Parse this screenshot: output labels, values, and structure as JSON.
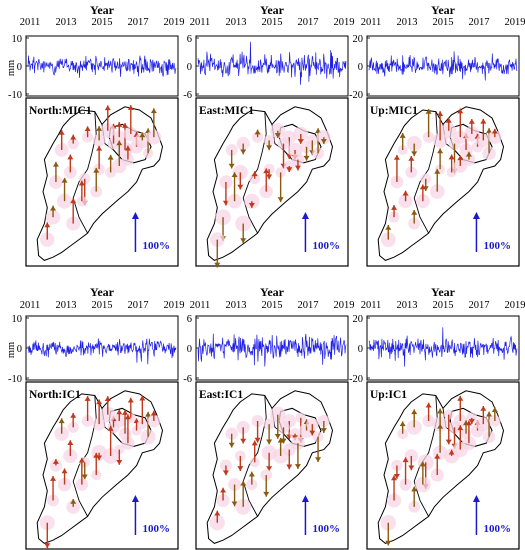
{
  "colors": {
    "series": "#1f1fe6",
    "arrow": "#c0391b",
    "arrow_dark": "#8b5a10",
    "halo": "#f7d6e6",
    "scale_arrow": "#1a1acc",
    "outline": "#000000"
  },
  "chart_data": [
    {
      "type": "line",
      "panel_label": "North:MIC1",
      "top_label": "Year",
      "x_ticks": [
        "2011",
        "2013",
        "2015",
        "2017",
        "2019"
      ],
      "y_unit": "mm",
      "y_ticks": [
        "10",
        "0",
        "-10"
      ],
      "ylim": [
        -10,
        10
      ],
      "series_amplitude": 3,
      "series_spikes": 4,
      "seed": 11,
      "scale_label": "100%",
      "vector_component": "horizontal-north",
      "vector_seed": 21
    },
    {
      "type": "line",
      "panel_label": "East:MIC1",
      "top_label": "Year",
      "x_ticks": [
        "2011",
        "2013",
        "2015",
        "2017",
        "2019"
      ],
      "y_unit": "",
      "y_ticks": [
        "6",
        "0",
        "-6"
      ],
      "ylim": [
        -6,
        6
      ],
      "series_amplitude": 2.4,
      "series_spikes": 3.5,
      "seed": 12,
      "scale_label": "100%",
      "vector_component": "east",
      "vector_seed": 22
    },
    {
      "type": "line",
      "panel_label": "Up:MIC1",
      "top_label": "Year",
      "x_ticks": [
        "2011",
        "2013",
        "2015",
        "2017",
        "2019"
      ],
      "y_unit": "",
      "y_ticks": [
        "20",
        "0",
        "-20"
      ],
      "ylim": [
        -20,
        20
      ],
      "series_amplitude": 6,
      "series_spikes": 10,
      "seed": 13,
      "scale_label": "100%",
      "vector_component": "up",
      "vector_seed": 23
    },
    {
      "type": "line",
      "panel_label": "North:IC1",
      "top_label": "Year",
      "x_ticks": [
        "2011",
        "2013",
        "2015",
        "2017",
        "2019"
      ],
      "y_unit": "mm",
      "y_ticks": [
        "10",
        "0",
        "-10"
      ],
      "ylim": [
        -10,
        10
      ],
      "series_amplitude": 2.5,
      "series_spikes": 4,
      "seed": 14,
      "scale_label": "100%",
      "vector_component": "north",
      "vector_seed": 24
    },
    {
      "type": "line",
      "panel_label": "East:IC1",
      "top_label": "Year",
      "x_ticks": [
        "2011",
        "2013",
        "2015",
        "2017",
        "2019"
      ],
      "y_unit": "",
      "y_ticks": [
        "6",
        "0",
        "-6"
      ],
      "ylim": [
        -6,
        6
      ],
      "series_amplitude": 2.2,
      "series_spikes": 4,
      "seed": 15,
      "scale_label": "100%",
      "vector_component": "east",
      "vector_seed": 25
    },
    {
      "type": "line",
      "panel_label": "Up:IC1",
      "top_label": "Year",
      "x_ticks": [
        "2011",
        "2013",
        "2015",
        "2017",
        "2019"
      ],
      "y_unit": "",
      "y_ticks": [
        "20",
        "0",
        "-20"
      ],
      "ylim": [
        -20,
        20
      ],
      "series_amplitude": 6,
      "series_spikes": 9,
      "seed": 16,
      "scale_label": "100%",
      "vector_component": "up",
      "vector_seed": 26
    }
  ]
}
